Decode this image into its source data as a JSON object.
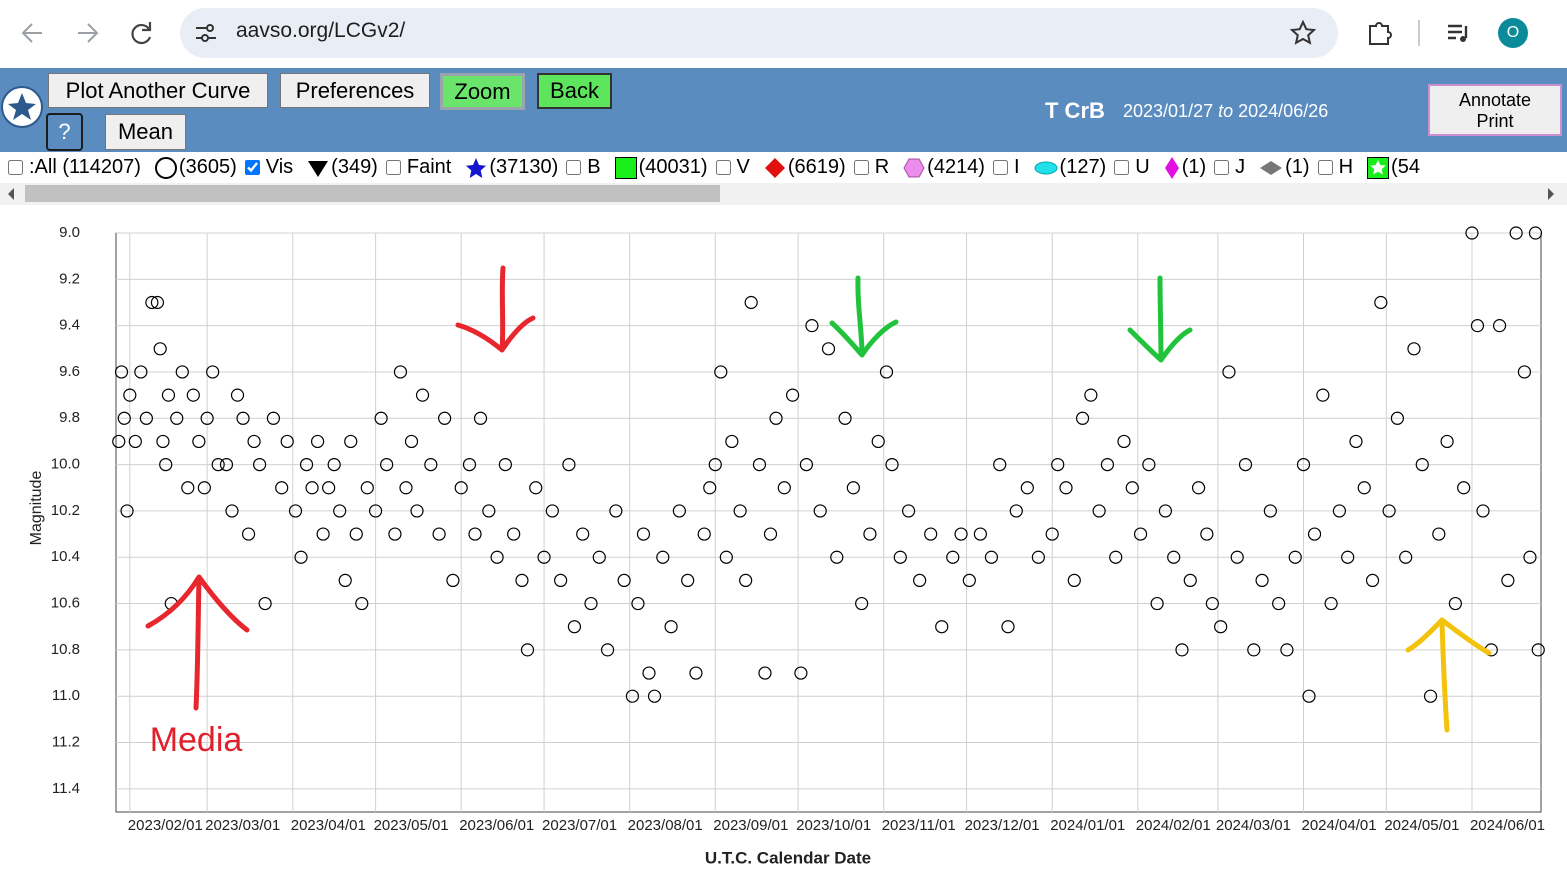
{
  "browser": {
    "url": "aavso.org/LCGv2/",
    "profile": "O"
  },
  "toolbar": {
    "buttons": [
      "Plot Another Curve",
      "Preferences",
      "Zoom",
      "Back",
      "?",
      "Mean"
    ],
    "star": "T CrB",
    "date_sep": "to",
    "annotate": [
      "Annotate",
      "Print"
    ]
  },
  "legend": {
    "all": ":All (114207)",
    "all_checked": false,
    "items": [
      {
        "count": "(3605)",
        "label": "Vis",
        "checked": true
      },
      {
        "count": "(349)",
        "label": "Faint",
        "checked": false
      },
      {
        "count": "(37130)",
        "label": "B",
        "checked": false
      },
      {
        "count": "(40031)",
        "label": "V",
        "checked": false
      },
      {
        "count": "(6619)",
        "label": "R",
        "checked": false
      },
      {
        "count": "(4214)",
        "label": "I",
        "checked": false
      },
      {
        "count": "(127)",
        "label": "U",
        "checked": false
      },
      {
        "count": "(1)",
        "label": "J",
        "checked": false
      },
      {
        "count": "(1)",
        "label": "H",
        "checked": false
      },
      {
        "count": "(54"
      }
    ]
  },
  "chart_data": {
    "type": "scatter",
    "y_label": "Magnitude",
    "x_label": "U.T.C. Calendar Date",
    "annotation": "Media",
    "color": "#000000",
    "grid": true,
    "y_inverted": true,
    "xlim": [
      "2023/01/27",
      "2024/06/26"
    ],
    "xticks": [
      "2023/02/01",
      "2023/03/01",
      "2023/04/01",
      "2023/05/01",
      "2023/06/01",
      "2023/07/01",
      "2023/08/01",
      "2023/09/01",
      "2023/10/01",
      "2023/11/01",
      "2023/12/01",
      "2024/01/01",
      "2024/02/01",
      "2024/03/01",
      "2024/04/01",
      "2024/05/01",
      "2024/06/01"
    ],
    "ylim": [
      9.0,
      11.5
    ],
    "yticks": [
      {
        "value": 9,
        "label": "9.0"
      },
      9.2,
      9.4,
      9.6,
      9.8,
      {
        "value": 10,
        "label": "10.0"
      },
      10.2,
      10.4,
      10.6,
      10.8,
      {
        "value": 11,
        "label": "11.0"
      },
      11.2,
      11.4
    ],
    "x": [
      "2023/01/28",
      "2023/01/29",
      "2023/01/30",
      "2023/01/31",
      "2023/02/01",
      "2023/02/03",
      "2023/02/05",
      "2023/02/07",
      "2023/02/09",
      "2023/02/11",
      "2023/02/12",
      "2023/02/13",
      "2023/02/14",
      "2023/02/15",
      "2023/02/16",
      "2023/02/18",
      "2023/02/20",
      "2023/02/22",
      "2023/02/24",
      "2023/02/26",
      "2023/02/28",
      "2023/03/01",
      "2023/03/03",
      "2023/03/05",
      "2023/03/08",
      "2023/03/10",
      "2023/03/12",
      "2023/03/14",
      "2023/03/16",
      "2023/03/18",
      "2023/03/20",
      "2023/03/22",
      "2023/03/25",
      "2023/03/28",
      "2023/03/30",
      "2023/04/02",
      "2023/04/04",
      "2023/04/06",
      "2023/04/08",
      "2023/04/10",
      "2023/04/12",
      "2023/04/14",
      "2023/04/16",
      "2023/04/18",
      "2023/04/20",
      "2023/04/22",
      "2023/04/24",
      "2023/04/26",
      "2023/04/28",
      "2023/05/01",
      "2023/05/03",
      "2023/05/05",
      "2023/05/08",
      "2023/05/10",
      "2023/05/12",
      "2023/05/14",
      "2023/05/16",
      "2023/05/18",
      "2023/05/21",
      "2023/05/24",
      "2023/05/26",
      "2023/05/29",
      "2023/06/01",
      "2023/06/04",
      "2023/06/06",
      "2023/06/08",
      "2023/06/11",
      "2023/06/14",
      "2023/06/17",
      "2023/06/20",
      "2023/06/23",
      "2023/06/25",
      "2023/06/28",
      "2023/07/01",
      "2023/07/04",
      "2023/07/07",
      "2023/07/10",
      "2023/07/12",
      "2023/07/15",
      "2023/07/18",
      "2023/07/21",
      "2023/07/24",
      "2023/07/27",
      "2023/07/30",
      "2023/08/02",
      "2023/08/04",
      "2023/08/06",
      "2023/08/08",
      "2023/08/10",
      "2023/08/13",
      "2023/08/16",
      "2023/08/19",
      "2023/08/22",
      "2023/08/25",
      "2023/08/28",
      "2023/08/30",
      "2023/09/01",
      "2023/09/03",
      "2023/09/05",
      "2023/09/07",
      "2023/09/10",
      "2023/09/12",
      "2023/09/14",
      "2023/09/17",
      "2023/09/19",
      "2023/09/21",
      "2023/09/23",
      "2023/09/26",
      "2023/09/29",
      "2023/10/02",
      "2023/10/04",
      "2023/10/06",
      "2023/10/09",
      "2023/10/12",
      "2023/10/15",
      "2023/10/18",
      "2023/10/21",
      "2023/10/24",
      "2023/10/27",
      "2023/10/30",
      "2023/11/02",
      "2023/11/04",
      "2023/11/07",
      "2023/11/10",
      "2023/11/14",
      "2023/11/18",
      "2023/11/22",
      "2023/11/26",
      "2023/11/29",
      "2023/12/02",
      "2023/12/06",
      "2023/12/10",
      "2023/12/13",
      "2023/12/16",
      "2023/12/19",
      "2023/12/23",
      "2023/12/27",
      "2024/01/01",
      "2024/01/03",
      "2024/01/06",
      "2024/01/09",
      "2024/01/12",
      "2024/01/15",
      "2024/01/18",
      "2024/01/21",
      "2024/01/24",
      "2024/01/27",
      "2024/01/30",
      "2024/02/02",
      "2024/02/05",
      "2024/02/08",
      "2024/02/11",
      "2024/02/14",
      "2024/02/17",
      "2024/02/20",
      "2024/02/23",
      "2024/02/26",
      "2024/02/28",
      "2024/03/02",
      "2024/03/05",
      "2024/03/08",
      "2024/03/11",
      "2024/03/14",
      "2024/03/17",
      "2024/03/20",
      "2024/03/23",
      "2024/03/26",
      "2024/03/29",
      "2024/04/01",
      "2024/04/03",
      "2024/04/05",
      "2024/04/08",
      "2024/04/11",
      "2024/04/14",
      "2024/04/17",
      "2024/04/20",
      "2024/04/23",
      "2024/04/26",
      "2024/04/29",
      "2024/05/02",
      "2024/05/05",
      "2024/05/08",
      "2024/05/11",
      "2024/05/14",
      "2024/05/17",
      "2024/05/20",
      "2024/05/23",
      "2024/05/26",
      "2024/05/29",
      "2024/06/01",
      "2024/06/03",
      "2024/06/05",
      "2024/06/08",
      "2024/06/11",
      "2024/06/14",
      "2024/06/17",
      "2024/06/20",
      "2024/06/22",
      "2024/06/24",
      "2024/06/25"
    ],
    "values": [
      9.9,
      9.6,
      9.8,
      10.2,
      9.7,
      9.9,
      9.6,
      9.8,
      9.3,
      9.3,
      9.5,
      9.9,
      10.0,
      9.7,
      10.6,
      9.8,
      9.6,
      10.1,
      9.7,
      9.9,
      10.1,
      9.8,
      9.6,
      10.0,
      10.0,
      10.2,
      9.7,
      9.8,
      10.3,
      9.9,
      10.0,
      10.6,
      9.8,
      10.1,
      9.9,
      10.2,
      10.4,
      10.0,
      10.1,
      9.9,
      10.3,
      10.1,
      10.0,
      10.2,
      10.5,
      9.9,
      10.3,
      10.6,
      10.1,
      10.2,
      9.8,
      10.0,
      10.3,
      9.6,
      10.1,
      9.9,
      10.2,
      9.7,
      10.0,
      10.3,
      9.8,
      10.5,
      10.1,
      10.0,
      10.3,
      9.8,
      10.2,
      10.4,
      10.0,
      10.3,
      10.5,
      10.8,
      10.1,
      10.4,
      10.2,
      10.5,
      10.0,
      10.7,
      10.3,
      10.6,
      10.4,
      10.8,
      10.2,
      10.5,
      11.0,
      10.6,
      10.3,
      10.9,
      11.0,
      10.4,
      10.7,
      10.2,
      10.5,
      10.9,
      10.3,
      10.1,
      10.0,
      9.6,
      10.4,
      9.9,
      10.2,
      10.5,
      9.3,
      10.0,
      10.9,
      10.3,
      9.8,
      10.1,
      9.7,
      10.9,
      10.0,
      9.4,
      10.2,
      9.5,
      10.4,
      9.8,
      10.1,
      10.6,
      10.3,
      9.9,
      9.6,
      10.0,
      10.4,
      10.2,
      10.5,
      10.3,
      10.7,
      10.4,
      10.3,
      10.5,
      10.3,
      10.4,
      10.0,
      10.7,
      10.2,
      10.1,
      10.4,
      10.3,
      10.0,
      10.1,
      10.5,
      9.8,
      9.7,
      10.2,
      10.0,
      10.4,
      9.9,
      10.1,
      10.3,
      10.0,
      10.6,
      10.2,
      10.4,
      10.8,
      10.5,
      10.1,
      10.3,
      10.6,
      10.7,
      9.6,
      10.4,
      10.0,
      10.8,
      10.5,
      10.2,
      10.6,
      10.8,
      10.4,
      10.0,
      11.0,
      10.3,
      9.7,
      10.6,
      10.2,
      10.4,
      9.9,
      10.1,
      10.5,
      9.3,
      10.2,
      9.8,
      10.4,
      9.5,
      10.0,
      11.0,
      10.3,
      9.9,
      10.6,
      10.1,
      9.0,
      9.4,
      10.2,
      10.8,
      9.4,
      10.5,
      9.0,
      9.6,
      10.4,
      9.0,
      10.8
    ]
  }
}
